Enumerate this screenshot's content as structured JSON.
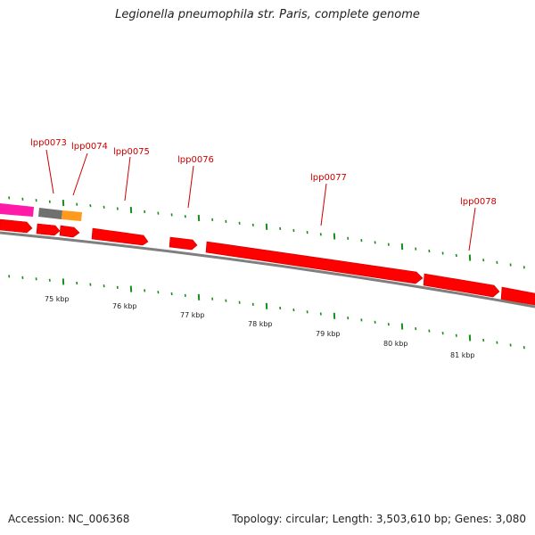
{
  "title": "Legionella pneumophila str. Paris, complete genome",
  "footer": {
    "accession": "Accession: NC_006368",
    "summary": "Topology: circular; Length: 3,503,610 bp; Genes: 3,080"
  },
  "colors": {
    "gene": "#ff0000",
    "gene_dark": "#cc0000",
    "backbone": "#7f7f7f",
    "ticks": "#1a8c1a",
    "rna_pink": "#ff1aa8",
    "gray_feature": "#707070",
    "orange_feature": "#ff9a1a",
    "label": "#cc0000"
  },
  "gene_labels": [
    "lpp0073",
    "lpp0074",
    "lpp0075",
    "lpp0076",
    "lpp0077",
    "lpp0078"
  ],
  "kbp_labels": [
    "75 kbp",
    "76 kbp",
    "77 kbp",
    "78 kbp",
    "79 kbp",
    "80 kbp",
    "81 kbp"
  ]
}
